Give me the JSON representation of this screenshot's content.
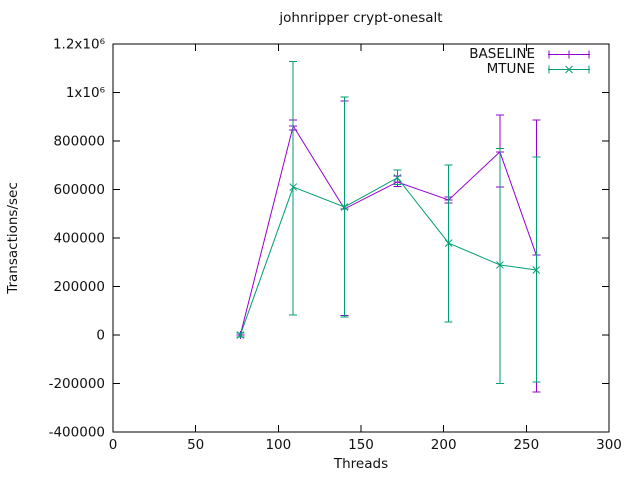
{
  "window": {
    "background": "#ffffff"
  },
  "chart_data": {
    "type": "line",
    "title": "johnripper crypt-onesalt",
    "xlabel": "Threads",
    "ylabel": "Transactions/sec",
    "xlim": [
      0,
      300
    ],
    "ylim": [
      -400000,
      1200000
    ],
    "grid": false,
    "legend_position": "top-right-inside",
    "axis_color": "#000000",
    "x_ticks": [
      {
        "value": 0,
        "label": "0"
      },
      {
        "value": 50,
        "label": "50"
      },
      {
        "value": 100,
        "label": "100"
      },
      {
        "value": 150,
        "label": "150"
      },
      {
        "value": 200,
        "label": "200"
      },
      {
        "value": 250,
        "label": "250"
      },
      {
        "value": 300,
        "label": "300"
      }
    ],
    "y_ticks": [
      {
        "value": -400000,
        "label": "-400000"
      },
      {
        "value": -200000,
        "label": "-200000"
      },
      {
        "value": 0,
        "label": "0"
      },
      {
        "value": 200000,
        "label": "200000"
      },
      {
        "value": 400000,
        "label": "400000"
      },
      {
        "value": 600000,
        "label": "600000"
      },
      {
        "value": 800000,
        "label": "800000"
      },
      {
        "value": 1000000,
        "label": "1x10⁶"
      },
      {
        "value": 1200000,
        "label": "1.2x10⁶"
      }
    ],
    "series": [
      {
        "name": "BASELINE",
        "color": "#9400d3",
        "marker": "plus",
        "style": "yerrorlines",
        "x": [
          77,
          109,
          140,
          172,
          203,
          234,
          256
        ],
        "y": [
          0,
          862000,
          520000,
          631000,
          557000,
          755000,
          330000
        ],
        "y_low": [
          -8000,
          845000,
          80000,
          612000,
          545000,
          610000,
          -235000
        ],
        "y_high": [
          8000,
          886000,
          965000,
          655000,
          570000,
          907000,
          887000
        ]
      },
      {
        "name": "MTUNE",
        "color": "#009e73",
        "marker": "cross",
        "style": "yerrorlines",
        "x": [
          77,
          109,
          140,
          172,
          203,
          234,
          256
        ],
        "y": [
          0,
          610000,
          528000,
          648000,
          379000,
          289000,
          268000
        ],
        "y_low": [
          -8000,
          82000,
          74000,
          620000,
          54000,
          -200000,
          -194000
        ],
        "y_high": [
          8000,
          1127000,
          981000,
          680000,
          701000,
          770000,
          734000
        ]
      }
    ]
  }
}
